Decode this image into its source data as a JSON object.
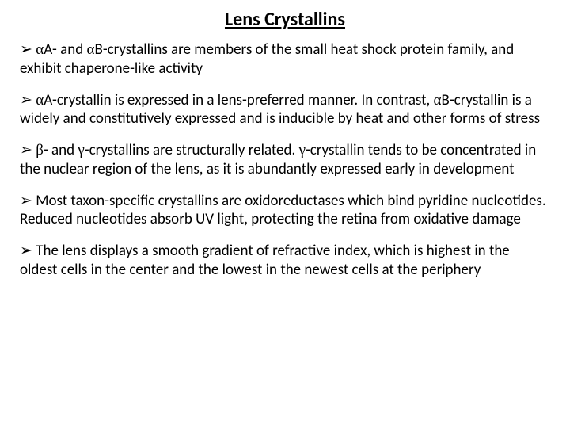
{
  "title": "Lens Crystallins",
  "arrow": "➢",
  "bullets": [
    {
      "pre": " ",
      "g1": "α",
      "mid1": "A- and ",
      "g2": "α",
      "mid2": "B-crystallins are members of the small heat shock protein family, and exhibit chaperone-like activity"
    },
    {
      "pre": " ",
      "g1": "α",
      "mid1": "A-crystallin is expressed in a lens-preferred manner. In contrast, ",
      "g2": "α",
      "mid2": "B-crystallin is a widely and constitutively expressed and is inducible by heat and other forms of stress"
    },
    {
      "pre": " ",
      "g1": "β",
      "mid1": "- and ",
      "g2": "γ",
      "mid2": "-crystallins are structurally related.  ",
      "g3": "γ",
      "mid3": "-crystallin tends to be concentrated in the nuclear region of the lens, as it is abundantly expressed early in development"
    },
    {
      "pre": " Most taxon-specific crystallins are oxidoreductases which bind pyridine nucleotides. Reduced nucleotides absorb UV light, protecting the retina from oxidative damage"
    },
    {
      "pre": " The lens displays a smooth gradient of refractive index, which is highest in the oldest cells in the center and the lowest in the newest cells at the periphery"
    }
  ]
}
